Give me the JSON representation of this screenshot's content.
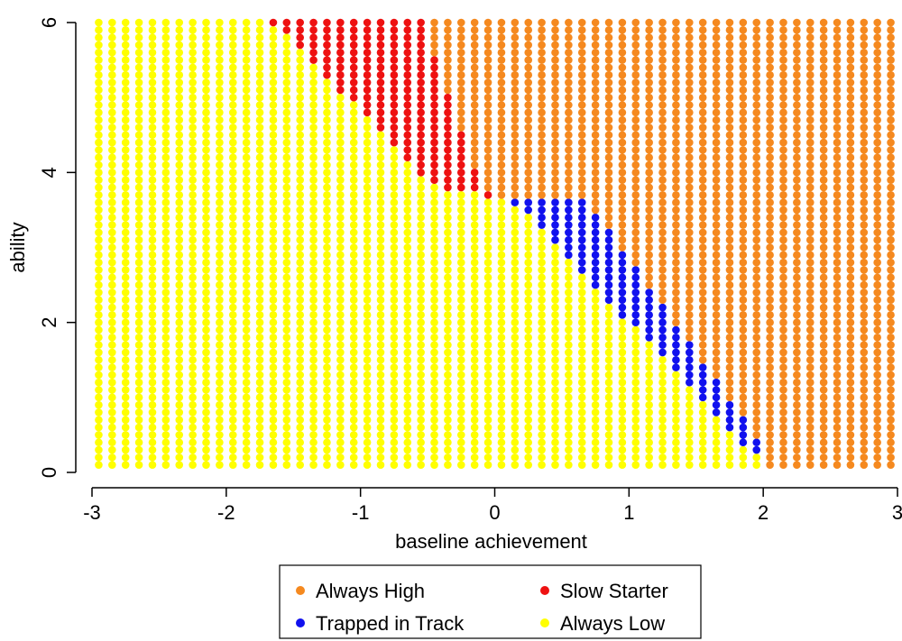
{
  "chart_data": {
    "type": "scatter",
    "title": "",
    "xlabel": "baseline achievement",
    "ylabel": "ability",
    "xlim": [
      -3,
      3
    ],
    "ylim": [
      0,
      6
    ],
    "x_ticks": [
      -3,
      -2,
      -1,
      0,
      1,
      2,
      3
    ],
    "y_ticks": [
      0,
      2,
      4,
      6
    ],
    "x_tick_labels": [
      "-3",
      "-2",
      "-1",
      "0",
      "1",
      "2",
      "3"
    ],
    "y_tick_labels": [
      "0",
      "2",
      "4",
      "6"
    ],
    "grid": false,
    "legend_position": "bottom",
    "grid_points": {
      "x_start": -2.95,
      "x_end": 2.95,
      "x_step": 0.1,
      "y_start": 0.1,
      "y_end": 6.0,
      "y_step": 0.1
    },
    "series": [
      {
        "name": "Always High",
        "color": "#f5891f"
      },
      {
        "name": "Slow Starter",
        "color": "#ee1111"
      },
      {
        "name": "Trapped in Track",
        "color": "#1111ee"
      },
      {
        "name": "Always Low",
        "color": "#ffff00"
      }
    ],
    "regions": {
      "slow_starter": {
        "description_boundaries": [
          {
            "y": 6.0,
            "x_min": -1.65,
            "x_max": -0.55
          },
          {
            "y": 3.8,
            "x_min": -0.45,
            "x_max": -0.15
          },
          {
            "y": 3.7,
            "x_min": -0.05,
            "x_max": -0.05
          }
        ]
      },
      "trapped": {
        "description_boundaries": [
          {
            "y": 3.6,
            "x_min": 0.15,
            "x_max": 0.25
          },
          {
            "y": 0.2,
            "x_min": 1.95,
            "x_max": 1.95
          }
        ]
      }
    }
  }
}
